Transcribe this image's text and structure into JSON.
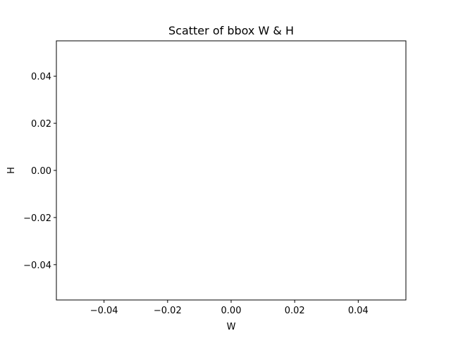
{
  "chart_data": {
    "type": "scatter",
    "title": "Scatter of bbox W & H",
    "xlabel": "W",
    "ylabel": "H",
    "xlim": [
      -0.055,
      0.055
    ],
    "ylim": [
      -0.055,
      0.055
    ],
    "x": [],
    "y": [],
    "xticks": [
      -0.04,
      -0.02,
      0.0,
      0.02,
      0.04
    ],
    "yticks": [
      -0.04,
      -0.02,
      0.0,
      0.02,
      0.04
    ],
    "xtick_labels": [
      "−0.04",
      "−0.02",
      "0.00",
      "0.02",
      "0.04"
    ],
    "ytick_labels": [
      "−0.04",
      "−0.02",
      "0.00",
      "0.02",
      "0.04"
    ],
    "grid": false,
    "legend": "none"
  }
}
